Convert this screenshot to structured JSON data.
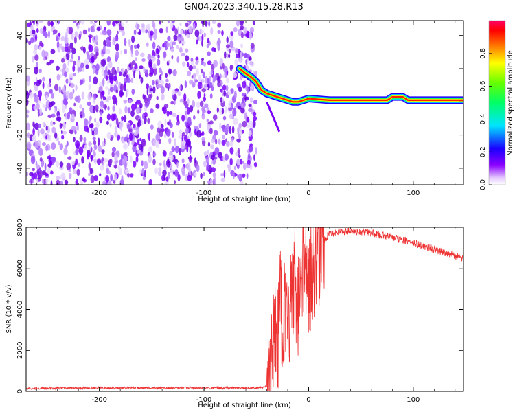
{
  "title": "GN04.2023.340.15.28.R13",
  "chart_data": [
    {
      "type": "heatmap",
      "panel": "spectrogram",
      "xlabel": "Height of straight line (km)",
      "ylabel": "Frequency (Hz)",
      "xlim": [
        -270,
        148
      ],
      "ylim": [
        -50,
        49
      ],
      "x_ticks": [
        -200,
        -100,
        0,
        100
      ],
      "y_ticks": [
        -40,
        -20,
        0,
        20,
        40
      ],
      "colorbar": {
        "label": "Normalized spectral amplitude",
        "range": [
          0,
          1
        ],
        "ticks": [
          0.0,
          0.2,
          0.4,
          0.6,
          0.8
        ],
        "tick_labels": [
          "0.0",
          "0.2",
          "0.4",
          "0.6",
          "0.8"
        ],
        "colormap": "rainbow (white-purple-blue-cyan-green-yellow-red-magenta)"
      },
      "noise_region_x": [
        -270,
        -50
      ],
      "signal_track": {
        "x": [
          -66,
          -60,
          -55,
          -50,
          -45,
          -40,
          -35,
          -30,
          -25,
          -20,
          -15,
          -10,
          -5,
          0,
          20,
          50,
          75,
          80,
          90,
          95,
          100,
          120,
          148
        ],
        "y": [
          20,
          17,
          15,
          12,
          7,
          5,
          4,
          3,
          2,
          1,
          0,
          0,
          1,
          2,
          1,
          1,
          1,
          3,
          3,
          1,
          1,
          1,
          1
        ]
      },
      "grid": false
    },
    {
      "type": "line",
      "panel": "snr",
      "xlabel": "Height of straight line (km)",
      "ylabel": "SNR (10 * v/v)",
      "xlim": [
        -270,
        148
      ],
      "ylim": [
        0,
        8000
      ],
      "x_ticks": [
        -200,
        -100,
        0,
        100
      ],
      "y_ticks": [
        0,
        2000,
        4000,
        6000,
        8000
      ],
      "series": [
        {
          "color": "#ee3333",
          "x": [
            -270,
            -200,
            -100,
            -50,
            -40,
            -36,
            -33,
            -30,
            -27,
            -25,
            -22,
            -18,
            -15,
            -10,
            -5,
            0,
            5,
            10,
            15,
            20,
            25,
            30,
            40,
            50,
            60,
            70,
            80,
            90,
            100,
            110,
            120,
            130,
            140,
            148
          ],
          "y": [
            150,
            170,
            170,
            170,
            220,
            900,
            3500,
            1800,
            5000,
            3000,
            4500,
            3800,
            5200,
            4300,
            5600,
            5300,
            6000,
            6700,
            7400,
            7700,
            7750,
            7800,
            7800,
            7780,
            7720,
            7620,
            7500,
            7380,
            7240,
            7080,
            6920,
            6780,
            6600,
            6450
          ]
        }
      ],
      "grid": false
    }
  ]
}
